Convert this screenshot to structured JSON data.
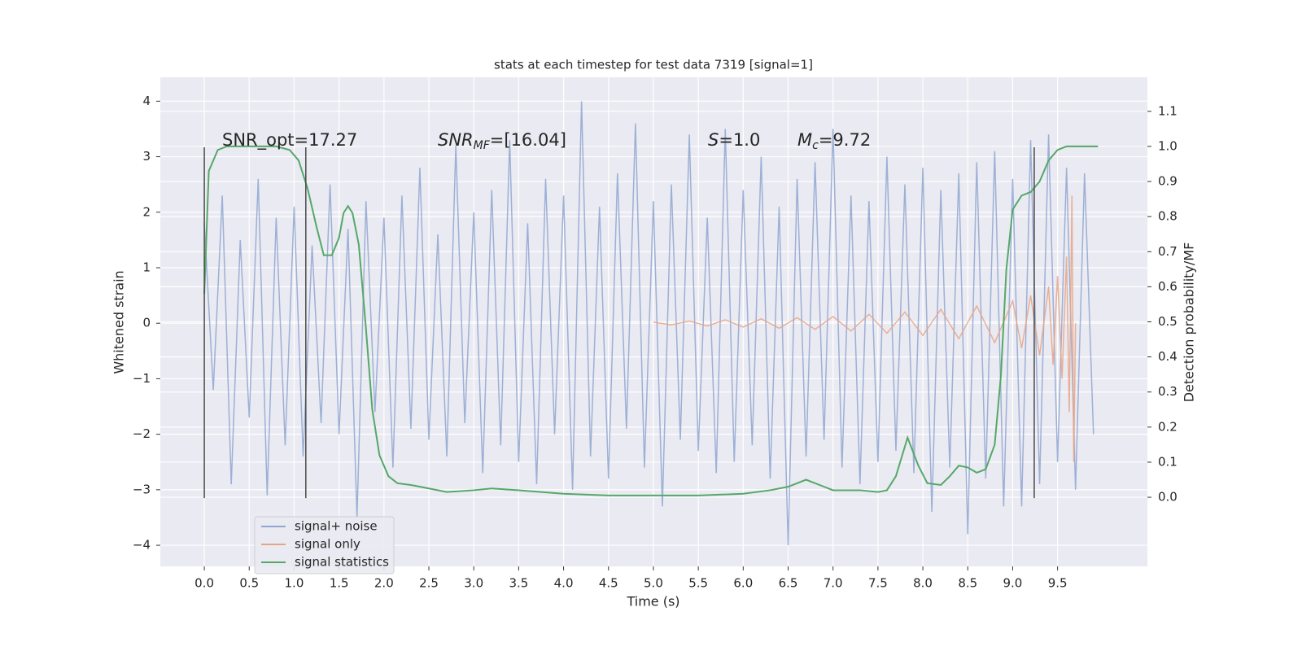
{
  "chart_data": {
    "type": "line",
    "title": "stats at each timestep for test data 7319 [signal=1]",
    "x_label": "Time (s)",
    "y_label": "Whitened strain",
    "y2_label": "Detection probability/MF",
    "background": "#eaeaf2",
    "grid": true,
    "legend": "lower left",
    "xlim": [
      -0.49,
      10.5
    ],
    "ylim": [
      -4.38,
      4.43
    ],
    "y2lim": [
      -0.197,
      1.197
    ],
    "xticks": [
      {
        "value": 0,
        "label": "0.0"
      },
      0.5,
      {
        "value": 1,
        "label": "1.0"
      },
      1.5,
      {
        "value": 2,
        "label": "2.0"
      },
      2.5,
      {
        "value": 3,
        "label": "3.0"
      },
      3.5,
      {
        "value": 4,
        "label": "4.0"
      },
      4.5,
      {
        "value": 5,
        "label": "5.0"
      },
      5.5,
      {
        "value": 6,
        "label": "6.0"
      },
      6.5,
      {
        "value": 7,
        "label": "7.0"
      },
      7.5,
      {
        "value": 8,
        "label": "8.0"
      },
      8.5,
      {
        "value": 9,
        "label": "9.0"
      },
      9.5
    ],
    "yticks": [
      {
        "value": -4,
        "label": "−4"
      },
      {
        "value": -3,
        "label": "−3"
      },
      {
        "value": -2,
        "label": "−2"
      },
      {
        "value": -1,
        "label": "−1"
      },
      0,
      1,
      2,
      3,
      4
    ],
    "y2ticks": [
      {
        "value": 0,
        "label": "0.0"
      },
      0.1,
      0.2,
      0.3,
      0.4,
      0.5,
      0.6,
      0.7,
      0.8,
      0.9,
      {
        "value": 1,
        "label": "1.0"
      },
      1.1
    ],
    "annotations": [
      {
        "text": "SNR_opt=17.27"
      },
      {
        "italic": "SNR",
        "sub": "MF",
        "text": "=[16.04]"
      },
      {
        "italic": "S",
        "text": "=1.0"
      },
      {
        "italic": "M",
        "sub": "c",
        "text": "=9.72"
      }
    ],
    "vlines": {
      "x": [
        0,
        1.13,
        9.24
      ],
      "ymin": -3.15,
      "ymax": 3.17,
      "color": "#4a4a4a"
    },
    "series": [
      {
        "name": "signal+ noise",
        "color": "#8fa6d0",
        "axis": "y",
        "x": [
          0,
          0.1,
          0.2,
          0.3,
          0.4,
          0.5,
          0.6,
          0.7,
          0.8,
          0.9,
          1,
          1.1,
          1.2,
          1.3,
          1.4,
          1.5,
          1.6,
          1.7,
          1.8,
          1.9,
          2,
          2.1,
          2.2,
          2.3,
          2.4,
          2.5,
          2.6,
          2.7,
          2.8,
          2.9,
          3,
          3.1,
          3.2,
          3.3,
          3.4,
          3.5,
          3.6,
          3.7,
          3.8,
          3.9,
          4,
          4.1,
          4.2,
          4.3,
          4.4,
          4.5,
          4.6,
          4.7,
          4.8,
          4.9,
          5,
          5.1,
          5.2,
          5.3,
          5.4,
          5.5,
          5.6,
          5.7,
          5.8,
          5.9,
          6,
          6.1,
          6.2,
          6.3,
          6.4,
          6.5,
          6.6,
          6.7,
          6.8,
          6.9,
          7,
          7.1,
          7.2,
          7.3,
          7.4,
          7.5,
          7.6,
          7.7,
          7.8,
          7.9,
          8,
          8.1,
          8.2,
          8.3,
          8.4,
          8.5,
          8.6,
          8.7,
          8.8,
          8.9,
          9,
          9.1,
          9.2,
          9.3,
          9.4,
          9.5,
          9.6,
          9.7,
          9.8,
          9.9
        ],
        "values": [
          1.8,
          -1.2,
          2.3,
          -2.9,
          1.5,
          -1.7,
          2.6,
          -3.1,
          1.9,
          -2.2,
          2.1,
          -2.4,
          1.4,
          -1.8,
          2.5,
          -2.0,
          1.7,
          -3.5,
          2.2,
          -1.6,
          1.9,
          -2.6,
          2.3,
          -1.9,
          2.8,
          -2.1,
          1.6,
          -2.4,
          3.2,
          -1.8,
          2.0,
          -2.7,
          2.4,
          -2.2,
          3.3,
          -2.5,
          1.8,
          -2.9,
          2.6,
          -2.0,
          2.3,
          -3.0,
          4.0,
          -2.4,
          2.1,
          -2.8,
          2.7,
          -1.9,
          3.6,
          -2.6,
          2.2,
          -3.3,
          2.5,
          -2.1,
          3.4,
          -2.3,
          1.9,
          -2.7,
          3.5,
          -2.5,
          2.4,
          -2.2,
          3.0,
          -2.8,
          2.1,
          -4.0,
          2.6,
          -2.4,
          2.9,
          -2.1,
          3.5,
          -2.6,
          2.3,
          -2.9,
          2.2,
          -2.5,
          3.0,
          -2.3,
          2.5,
          -2.7,
          2.8,
          -3.4,
          2.4,
          -2.6,
          2.7,
          -3.8,
          2.9,
          -2.8,
          3.1,
          -3.3,
          2.6,
          -3.3,
          3.3,
          -2.9,
          3.4,
          -2.5,
          2.8,
          -3.0,
          2.7,
          -2.0
        ]
      },
      {
        "name": "signal only",
        "color": "#e8a585",
        "axis": "y",
        "x": [
          5.0,
          5.2,
          5.4,
          5.6,
          5.8,
          6.0,
          6.2,
          6.4,
          6.6,
          6.8,
          7.0,
          7.2,
          7.4,
          7.6,
          7.8,
          8.0,
          8.2,
          8.4,
          8.6,
          8.8,
          9.0,
          9.1,
          9.2,
          9.3,
          9.4,
          9.45,
          9.5,
          9.55,
          9.6,
          9.63,
          9.66,
          9.68,
          9.7
        ],
        "values": [
          0.02,
          -0.03,
          0.04,
          -0.05,
          0.06,
          -0.07,
          0.08,
          -0.09,
          0.1,
          -0.11,
          0.12,
          -0.14,
          0.16,
          -0.18,
          0.2,
          -0.22,
          0.25,
          -0.28,
          0.31,
          -0.35,
          0.4,
          -0.45,
          0.5,
          -0.58,
          0.66,
          -0.75,
          0.85,
          -1.0,
          1.2,
          -1.6,
          2.3,
          -2.5,
          0
        ]
      },
      {
        "name": "signal statistics",
        "color": "#55a868",
        "axis": "y2",
        "x": [
          0,
          0.05,
          0.15,
          0.25,
          0.5,
          0.8,
          0.95,
          1.05,
          1.15,
          1.25,
          1.33,
          1.42,
          1.5,
          1.55,
          1.6,
          1.65,
          1.72,
          1.8,
          1.87,
          1.95,
          2.05,
          2.15,
          2.3,
          2.5,
          2.7,
          3.0,
          3.2,
          3.5,
          4.0,
          4.5,
          5.0,
          5.5,
          6.0,
          6.3,
          6.5,
          6.7,
          6.9,
          7.0,
          7.3,
          7.5,
          7.6,
          7.7,
          7.83,
          7.95,
          8.05,
          8.2,
          8.3,
          8.4,
          8.5,
          8.6,
          8.7,
          8.8,
          8.87,
          8.93,
          9.0,
          9.1,
          9.2,
          9.3,
          9.4,
          9.5,
          9.6,
          9.95
        ],
        "values": [
          0.58,
          0.93,
          0.99,
          1.0,
          1.0,
          1.0,
          0.99,
          0.96,
          0.88,
          0.77,
          0.69,
          0.69,
          0.74,
          0.81,
          0.83,
          0.81,
          0.72,
          0.48,
          0.25,
          0.12,
          0.06,
          0.04,
          0.035,
          0.025,
          0.015,
          0.02,
          0.025,
          0.02,
          0.01,
          0.005,
          0.005,
          0.005,
          0.01,
          0.02,
          0.03,
          0.05,
          0.03,
          0.02,
          0.02,
          0.015,
          0.02,
          0.06,
          0.17,
          0.09,
          0.04,
          0.035,
          0.06,
          0.09,
          0.085,
          0.07,
          0.08,
          0.15,
          0.35,
          0.65,
          0.82,
          0.86,
          0.87,
          0.9,
          0.96,
          0.99,
          1.0,
          1.0
        ]
      }
    ]
  }
}
